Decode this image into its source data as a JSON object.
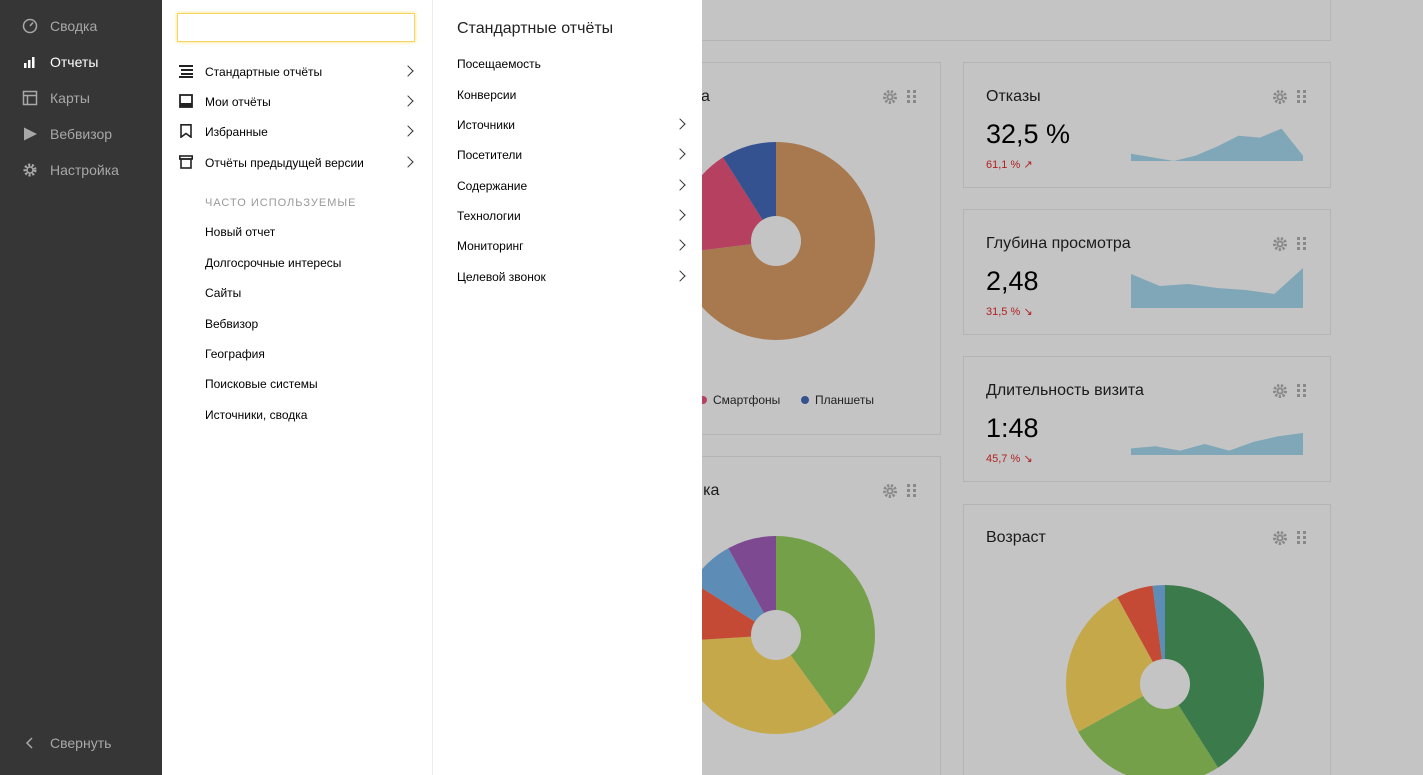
{
  "nav": {
    "items": [
      {
        "label": "Сводка",
        "icon": "speedometer-icon"
      },
      {
        "label": "Отчеты",
        "icon": "bar-chart-icon",
        "active": true
      },
      {
        "label": "Карты",
        "icon": "map-layout-icon"
      },
      {
        "label": "Вебвизор",
        "icon": "play-icon"
      },
      {
        "label": "Настройка",
        "icon": "gear-icon"
      }
    ],
    "collapse_label": "Свернуть"
  },
  "menu": {
    "search_value": "",
    "items": [
      {
        "label": "Стандартные отчёты",
        "icon": "list-icon"
      },
      {
        "label": "Мои отчёты",
        "icon": "inbox-icon"
      },
      {
        "label": "Избранные",
        "icon": "bookmark-icon"
      },
      {
        "label": "Отчёты предыдущей версии",
        "icon": "archive-icon"
      }
    ],
    "frequent_title": "ЧАСТО ИСПОЛЬЗУЕМЫЕ",
    "frequent": [
      "Новый отчет",
      "Долгосрочные интересы",
      "Сайты",
      "Вебвизор",
      "География",
      "Поисковые системы",
      "Источники, сводка"
    ]
  },
  "submenu": {
    "title": "Стандартные отчёты",
    "items": [
      {
        "label": "Посещаемость",
        "has_children": false
      },
      {
        "label": "Конверсии",
        "has_children": false
      },
      {
        "label": "Источники",
        "has_children": true
      },
      {
        "label": "Посетители",
        "has_children": true
      },
      {
        "label": "Содержание",
        "has_children": true
      },
      {
        "label": "Технологии",
        "has_children": true
      },
      {
        "label": "Мониторинг",
        "has_children": true
      },
      {
        "label": "Целевой звонок",
        "has_children": true
      }
    ]
  },
  "widgets": {
    "devices": {
      "title_tail": "а",
      "legend": [
        {
          "label": "Смартфоны",
          "color": "#b5405f"
        },
        {
          "label": "Планшеты",
          "color": "#34528f"
        }
      ],
      "slices": [
        {
          "value": 73,
          "color": "#a8784f"
        },
        {
          "value": 18,
          "color": "#b5405f"
        },
        {
          "value": 9,
          "color": "#34528f"
        }
      ]
    },
    "geography": {
      "title_tail": "фика",
      "slices": [
        {
          "value": 40,
          "color": "#74a04a"
        },
        {
          "value": 34,
          "color": "#c4a84a"
        },
        {
          "value": 10,
          "color": "#c54a35"
        },
        {
          "value": 8,
          "color": "#5d8db6"
        },
        {
          "value": 8,
          "color": "#7d4990"
        }
      ]
    },
    "bounce": {
      "title": "Отказы",
      "value": "32,5 %",
      "delta": "61,1 %",
      "trend": "up",
      "spark": [
        0.8,
        0.9,
        1.0,
        0.85,
        0.6,
        0.3,
        0.35,
        0.1,
        0.85
      ]
    },
    "depth": {
      "title": "Глубина просмотра",
      "value": "2,48",
      "delta": "31,5 %",
      "trend": "down",
      "spark": [
        0.15,
        0.45,
        0.4,
        0.5,
        0.55,
        0.65,
        0.0
      ]
    },
    "duration": {
      "title": "Длительность визита",
      "value": "1:48",
      "delta": "45,7 %",
      "trend": "down",
      "spark": [
        0.7,
        0.6,
        0.8,
        0.5,
        0.8,
        0.4,
        0.15,
        0.0
      ]
    },
    "age": {
      "title": "Возраст",
      "slices": [
        {
          "value": 41,
          "color": "#3b7a4b"
        },
        {
          "value": 26,
          "color": "#74a04a"
        },
        {
          "value": 25,
          "color": "#c4a84a"
        },
        {
          "value": 6,
          "color": "#c54a35"
        },
        {
          "value": 2,
          "color": "#5d8db6"
        }
      ]
    }
  },
  "colors": {
    "sparkline": "#7fa7b8",
    "delta": "#b02222",
    "nav_bg": "#363636",
    "overlay_bg": "#c4c4c4"
  }
}
